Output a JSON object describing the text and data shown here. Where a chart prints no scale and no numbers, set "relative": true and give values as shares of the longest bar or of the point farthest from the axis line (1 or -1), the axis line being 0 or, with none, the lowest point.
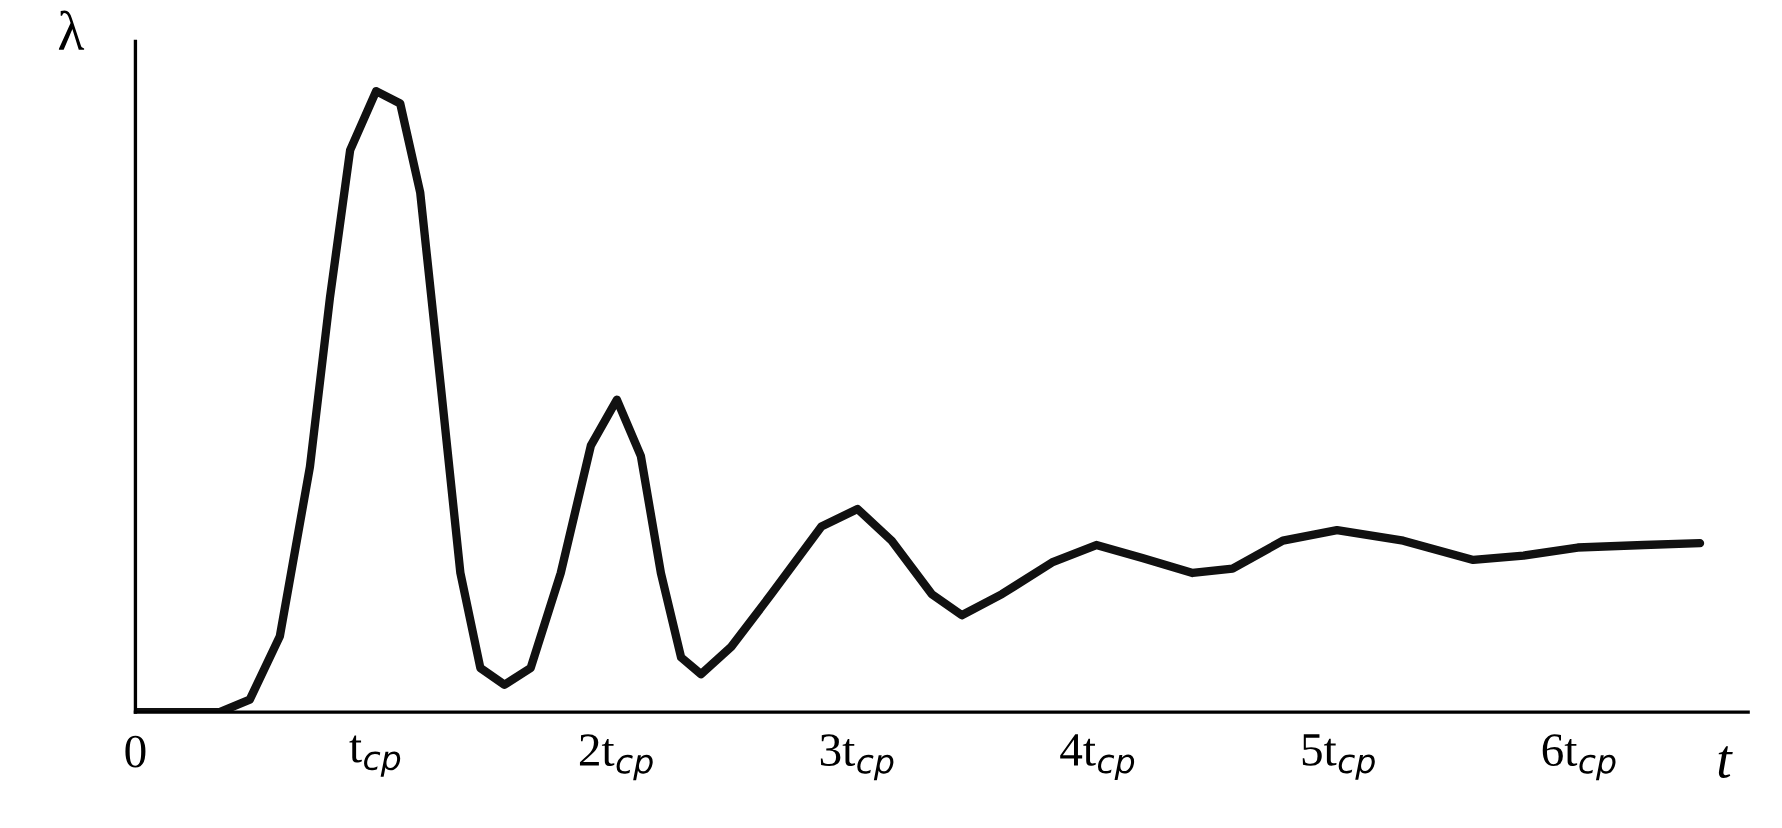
{
  "chart_data": {
    "type": "line",
    "relative": true,
    "xlabel": "t",
    "ylabel": "λ",
    "xlim": [
      0,
      6.7
    ],
    "xticks": [
      0,
      {
        "value": 1,
        "label": "t$_{cp}$"
      },
      {
        "value": 2,
        "label": "2t$_{cp}$"
      },
      {
        "value": 3,
        "label": "3t$_{cp}$"
      },
      {
        "value": 4,
        "label": "4t$_{cp}$"
      },
      {
        "value": 5,
        "label": "5t$_{cp}$"
      },
      {
        "value": 6,
        "label": "6t$_{cp}$"
      }
    ],
    "grid": false,
    "legend": false,
    "marker": "none",
    "line_style": "solid",
    "series": [
      {
        "color": "#111111",
        "x": [
          0,
          0.35,
          0.475,
          0.6,
          0.725,
          0.808,
          0.892,
          1.0,
          1.1,
          1.183,
          1.267,
          1.35,
          1.433,
          1.533,
          1.642,
          1.767,
          1.892,
          2.0,
          2.1,
          2.183,
          2.267,
          2.35,
          2.475,
          2.642,
          2.85,
          3.0,
          3.142,
          3.308,
          3.433,
          3.6,
          3.808,
          3.992,
          4.183,
          4.392,
          4.558,
          4.767,
          4.992,
          5.267,
          5.558,
          5.767,
          5.992,
          6.267,
          6.5
        ],
        "values": [
          0,
          0,
          0.02,
          0.122,
          0.395,
          0.667,
          0.905,
          1,
          0.98,
          0.837,
          0.531,
          0.224,
          0.071,
          0.044,
          0.071,
          0.224,
          0.429,
          0.503,
          0.412,
          0.224,
          0.088,
          0.061,
          0.105,
          0.19,
          0.299,
          0.327,
          0.276,
          0.19,
          0.156,
          0.19,
          0.241,
          0.269,
          0.248,
          0.224,
          0.231,
          0.276,
          0.293,
          0.276,
          0.245,
          0.252,
          0.265,
          0.269,
          0.272
        ]
      }
    ]
  }
}
